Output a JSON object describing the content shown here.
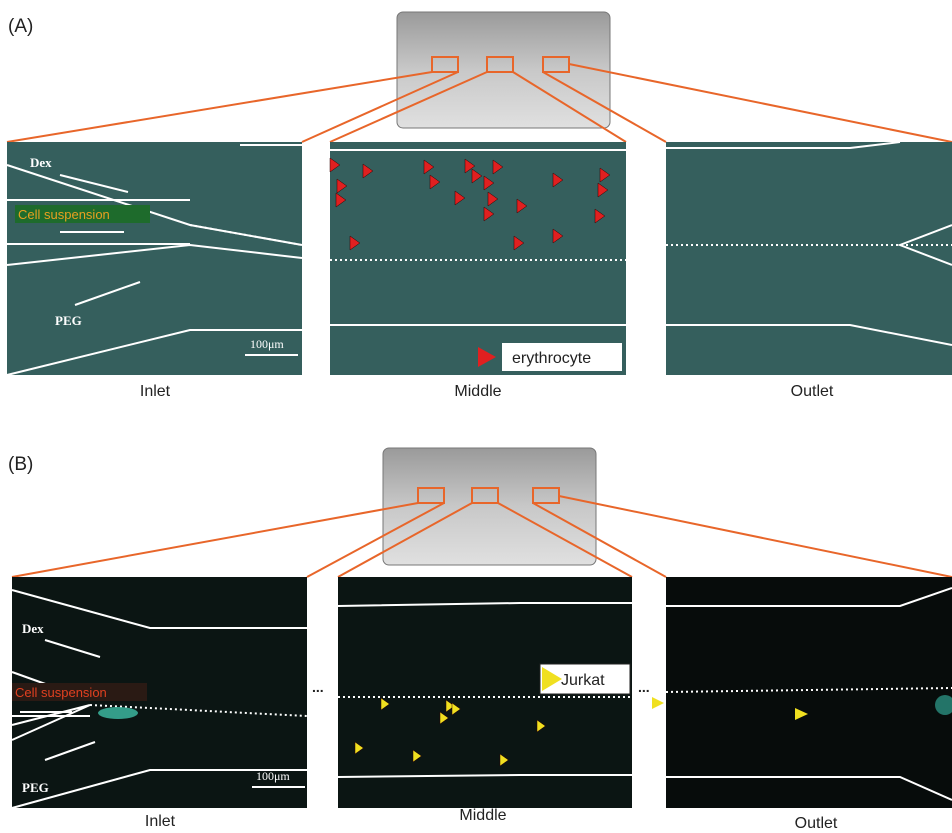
{
  "panels": [
    {
      "label": "(A)",
      "inlet": {
        "caption": "Inlet",
        "flow_labels": [
          "Dex",
          "Cell suspension",
          "PEG"
        ],
        "scale_bar": "100μm"
      },
      "middle": {
        "caption": "Middle",
        "marker_legend": "erythrocyte"
      },
      "outlet": {
        "caption": "Outlet"
      }
    },
    {
      "label": "(B)",
      "inlet": {
        "caption": "Inlet",
        "flow_labels": [
          "Dex",
          "Cell suspension",
          "PEG"
        ],
        "scale_bar": "100μm"
      },
      "middle": {
        "caption": "Middle",
        "marker_legend": "Jurkat"
      },
      "outlet": {
        "caption": "Outlet"
      },
      "separators": [
        "...",
        "..."
      ]
    }
  ]
}
